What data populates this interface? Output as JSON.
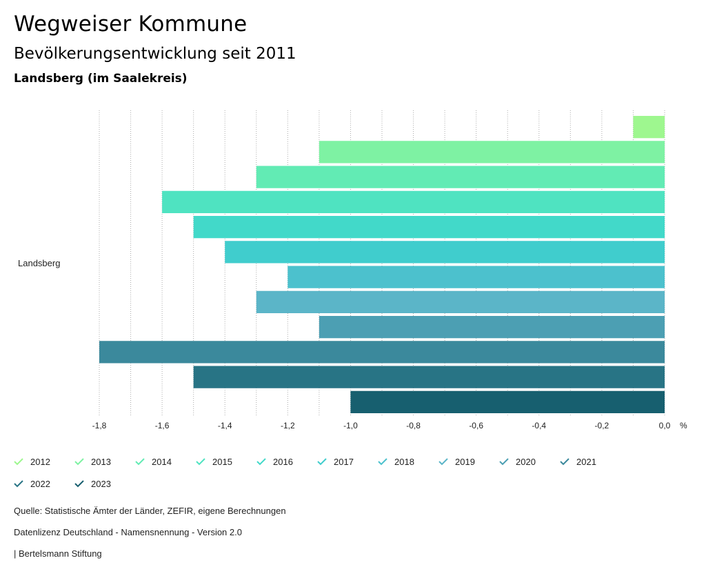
{
  "header": {
    "title": "Wegweiser Kommune",
    "subtitle": "Bevölkerungsentwicklung seit 2011",
    "region": "Landsberg (im Saalekreis)"
  },
  "footer": {
    "source": "Quelle: Statistische Ämter der Länder, ZEFIR, eigene Berechnungen",
    "license": "Datenlizenz Deutschland - Namensnennung - Version 2.0",
    "publisher": "| Bertelsmann Stiftung"
  },
  "chart_data": {
    "type": "bar",
    "orientation": "horizontal",
    "category": "Landsberg",
    "unit": "%",
    "xlim": [
      -1.8,
      0.0
    ],
    "ticks": [
      "-1,8",
      "-1,6",
      "-1,4",
      "-1,2",
      "-1,0",
      "-0,8",
      "-0,6",
      "-0,4",
      "-0,2",
      "0,0"
    ],
    "tick_values": [
      -1.8,
      -1.6,
      -1.4,
      -1.2,
      -1.0,
      -0.8,
      -0.6,
      -0.4,
      -0.2,
      0.0
    ],
    "grid": true,
    "legend_position": "bottom",
    "series": [
      {
        "name": "2012",
        "value": -0.1,
        "color": "#9ef78f"
      },
      {
        "name": "2013",
        "value": -1.1,
        "color": "#7ef2a3"
      },
      {
        "name": "2014",
        "value": -1.3,
        "color": "#62ebb4"
      },
      {
        "name": "2015",
        "value": -1.6,
        "color": "#4fe3c1"
      },
      {
        "name": "2016",
        "value": -1.5,
        "color": "#42d9c9"
      },
      {
        "name": "2017",
        "value": -1.4,
        "color": "#40cdcd"
      },
      {
        "name": "2018",
        "value": -1.2,
        "color": "#4cc1cd"
      },
      {
        "name": "2019",
        "value": -1.3,
        "color": "#5bb5c8"
      },
      {
        "name": "2020",
        "value": -1.1,
        "color": "#4c9fb3"
      },
      {
        "name": "2021",
        "value": -1.8,
        "color": "#3b899c"
      },
      {
        "name": "2022",
        "value": -1.5,
        "color": "#287485"
      },
      {
        "name": "2023",
        "value": -1.0,
        "color": "#175f6f"
      }
    ]
  }
}
